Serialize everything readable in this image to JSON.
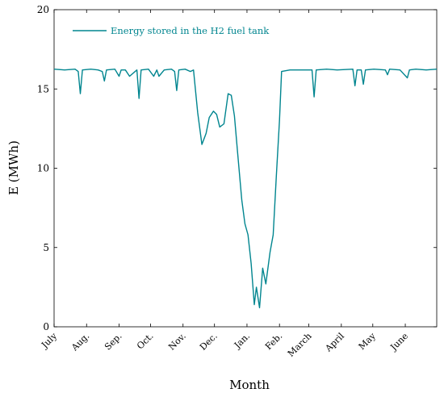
{
  "chart_data": {
    "type": "line",
    "xlabel": "Month",
    "ylabel": "E (MWh)",
    "xlim": [
      0,
      365
    ],
    "ylim": [
      0,
      20
    ],
    "yticks": [
      0,
      5,
      10,
      15,
      20
    ],
    "xticks": [
      {
        "value": 0,
        "label": "July"
      },
      {
        "value": 31,
        "label": "Aug."
      },
      {
        "value": 62,
        "label": "Sep."
      },
      {
        "value": 92,
        "label": "Oct."
      },
      {
        "value": 123,
        "label": "Nov."
      },
      {
        "value": 153,
        "label": "Dec."
      },
      {
        "value": 184,
        "label": "Jan."
      },
      {
        "value": 215,
        "label": "Feb."
      },
      {
        "value": 243,
        "label": "March"
      },
      {
        "value": 274,
        "label": "April"
      },
      {
        "value": 304,
        "label": "May"
      },
      {
        "value": 335,
        "label": "June"
      }
    ],
    "legend": "upper left",
    "series": [
      {
        "name": "Energy stored in the H2 fuel tank",
        "color": "#00858f",
        "x": [
          0,
          10,
          20,
          23,
          25,
          27,
          35,
          42,
          46,
          48,
          50,
          58,
          62,
          64,
          68,
          72,
          79,
          81,
          83,
          90,
          95,
          98,
          100,
          105,
          112,
          115,
          117,
          119,
          125,
          130,
          133,
          137,
          141,
          145,
          148,
          152,
          155,
          158,
          162,
          166,
          169,
          172,
          175,
          179,
          182,
          185,
          188,
          191,
          193,
          196,
          199,
          202,
          206,
          209,
          212,
          215,
          217,
          225,
          235,
          246,
          248,
          250,
          260,
          270,
          285,
          287,
          289,
          293,
          295,
          297,
          305,
          316,
          318,
          320,
          330,
          337,
          339,
          345,
          355,
          365
        ],
        "values": [
          16.25,
          16.2,
          16.25,
          16.1,
          14.7,
          16.2,
          16.25,
          16.2,
          16.1,
          15.5,
          16.2,
          16.25,
          15.8,
          16.2,
          16.2,
          15.8,
          16.2,
          14.4,
          16.2,
          16.25,
          15.8,
          16.2,
          15.8,
          16.2,
          16.25,
          16.1,
          14.9,
          16.2,
          16.25,
          16.1,
          16.2,
          13.5,
          11.5,
          12.2,
          13.2,
          13.6,
          13.4,
          12.6,
          12.8,
          14.7,
          14.6,
          13.3,
          11,
          8,
          6.5,
          5.8,
          4,
          1.4,
          2.5,
          1.2,
          3.7,
          2.7,
          4.7,
          5.8,
          9.5,
          13,
          16.1,
          16.2,
          16.2,
          16.2,
          14.5,
          16.2,
          16.25,
          16.2,
          16.25,
          15.2,
          16.2,
          16.2,
          15.3,
          16.2,
          16.25,
          16.2,
          15.9,
          16.25,
          16.2,
          15.7,
          16.2,
          16.25,
          16.2,
          16.25
        ]
      }
    ]
  }
}
